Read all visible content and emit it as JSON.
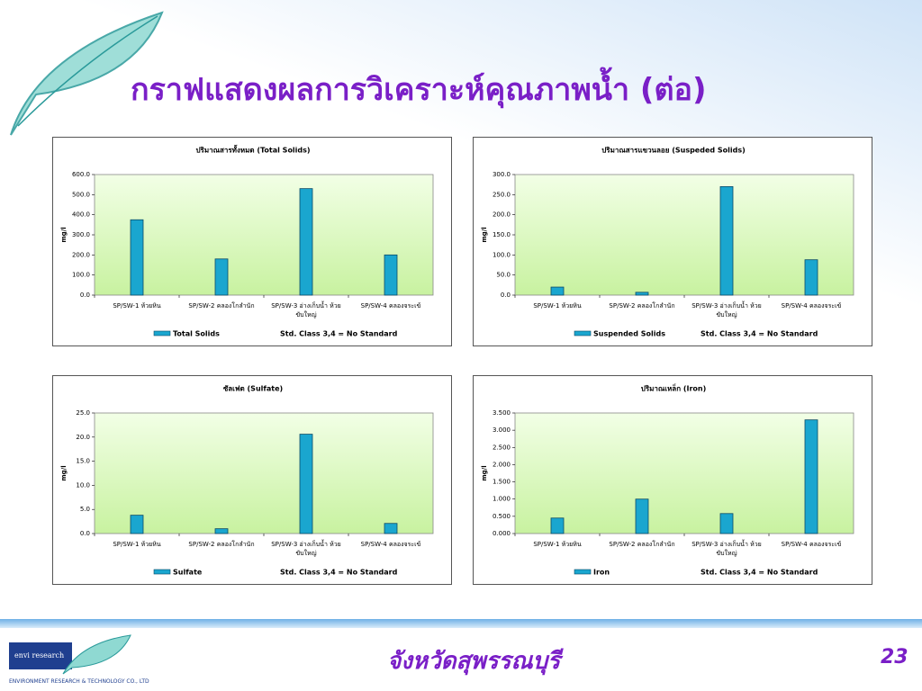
{
  "slide": {
    "title": "กราฟแสดงผลการวิเคราะห์คุณภาพน้ำ (ต่อ)",
    "footer": "จังหวัดสุพรรณบุรี",
    "page_number": "23",
    "logo_text": "envi research",
    "company": "ENVIRONMENT RESEARCH & TECHNOLOGY CO., LTD"
  },
  "chart_data": [
    {
      "type": "bar",
      "title": "ปริมาณสารทั้งหมด (Total Solids)",
      "y_label": "mg/l",
      "note": "Std. Class 3,4 = No Standard",
      "categories": [
        "SP/SW-1 ห้วยหิน",
        "SP/SW-2 คลองโกลำนัก",
        "SP/SW-3 อ่างเก็บน้ำ ห้วยขับใหญ่",
        "SP/SW-4 คลองจระเข้"
      ],
      "series": [
        {
          "name": "Total Solids",
          "color": "#1aa6cf",
          "values": [
            375,
            180,
            530,
            200
          ]
        }
      ],
      "ylim": [
        0,
        600
      ],
      "yticks": [
        {
          "value": 0,
          "label": "0.0"
        },
        {
          "value": 100,
          "label": "100.0"
        },
        {
          "value": 200,
          "label": "200.0"
        },
        {
          "value": 300,
          "label": "300.0"
        },
        {
          "value": 400,
          "label": "400.0"
        },
        {
          "value": 500,
          "label": "500.0"
        },
        {
          "value": 600,
          "label": "600.0"
        }
      ]
    },
    {
      "type": "bar",
      "title": "ปริมาณสารแขวนลอย (Suspeded Solids)",
      "y_label": "mg/l",
      "note": "Std. Class 3,4 = No Standard",
      "categories": [
        "SP/SW-1 ห้วยหิน",
        "SP/SW-2 คลองโกลำนัก",
        "SP/SW-3 อ่างเก็บน้ำ ห้วยขับใหญ่",
        "SP/SW-4 คลองจระเข้"
      ],
      "series": [
        {
          "name": "Suspended Solids",
          "color": "#1aa6cf",
          "values": [
            20,
            7,
            270,
            88
          ]
        }
      ],
      "ylim": [
        0,
        300
      ],
      "yticks": [
        {
          "value": 0,
          "label": "0.0"
        },
        {
          "value": 50,
          "label": "50.0"
        },
        {
          "value": 100,
          "label": "100.0"
        },
        {
          "value": 150,
          "label": "150.0"
        },
        {
          "value": 200,
          "label": "200.0"
        },
        {
          "value": 250,
          "label": "250.0"
        },
        {
          "value": 300,
          "label": "300.0"
        }
      ]
    },
    {
      "type": "bar",
      "title": "ซัลเฟต (Sulfate)",
      "y_label": "mg/l",
      "note": "Std. Class 3,4 = No Standard",
      "categories": [
        "SP/SW-1 ห้วยหิน",
        "SP/SW-2 คลองโกลำนัก",
        "SP/SW-3 อ่างเก็บน้ำ ห้วยขับใหญ่",
        "SP/SW-4 คลองจระเข้"
      ],
      "series": [
        {
          "name": "Sulfate",
          "color": "#1aa6cf",
          "values": [
            3.8,
            1.0,
            20.6,
            2.1
          ]
        }
      ],
      "ylim": [
        0,
        25
      ],
      "yticks": [
        {
          "value": 0,
          "label": "0.0"
        },
        {
          "value": 5,
          "label": "5.0"
        },
        {
          "value": 10,
          "label": "10.0"
        },
        {
          "value": 15,
          "label": "15.0"
        },
        {
          "value": 20,
          "label": "20.0"
        },
        {
          "value": 25,
          "label": "25.0"
        }
      ]
    },
    {
      "type": "bar",
      "title": "ปริมาณเหล็ก (Iron)",
      "y_label": "mg/l",
      "note": "Std. Class 3,4 = No Standard",
      "categories": [
        "SP/SW-1 ห้วยหิน",
        "SP/SW-2 คลองโกลำนัก",
        "SP/SW-3 อ่างเก็บน้ำ ห้วยขับใหญ่",
        "SP/SW-4 คลองจระเข้"
      ],
      "series": [
        {
          "name": "Iron",
          "color": "#1aa6cf",
          "values": [
            0.45,
            1.0,
            0.58,
            3.3
          ]
        }
      ],
      "ylim": [
        0,
        3.5
      ],
      "yticks": [
        {
          "value": 0,
          "label": "0.000"
        },
        {
          "value": 0.5,
          "label": "0.500"
        },
        {
          "value": 1,
          "label": "1.000"
        },
        {
          "value": 1.5,
          "label": "1.500"
        },
        {
          "value": 2,
          "label": "2.000"
        },
        {
          "value": 2.5,
          "label": "2.500"
        },
        {
          "value": 3,
          "label": "3.000"
        },
        {
          "value": 3.5,
          "label": "3.500"
        }
      ]
    }
  ]
}
